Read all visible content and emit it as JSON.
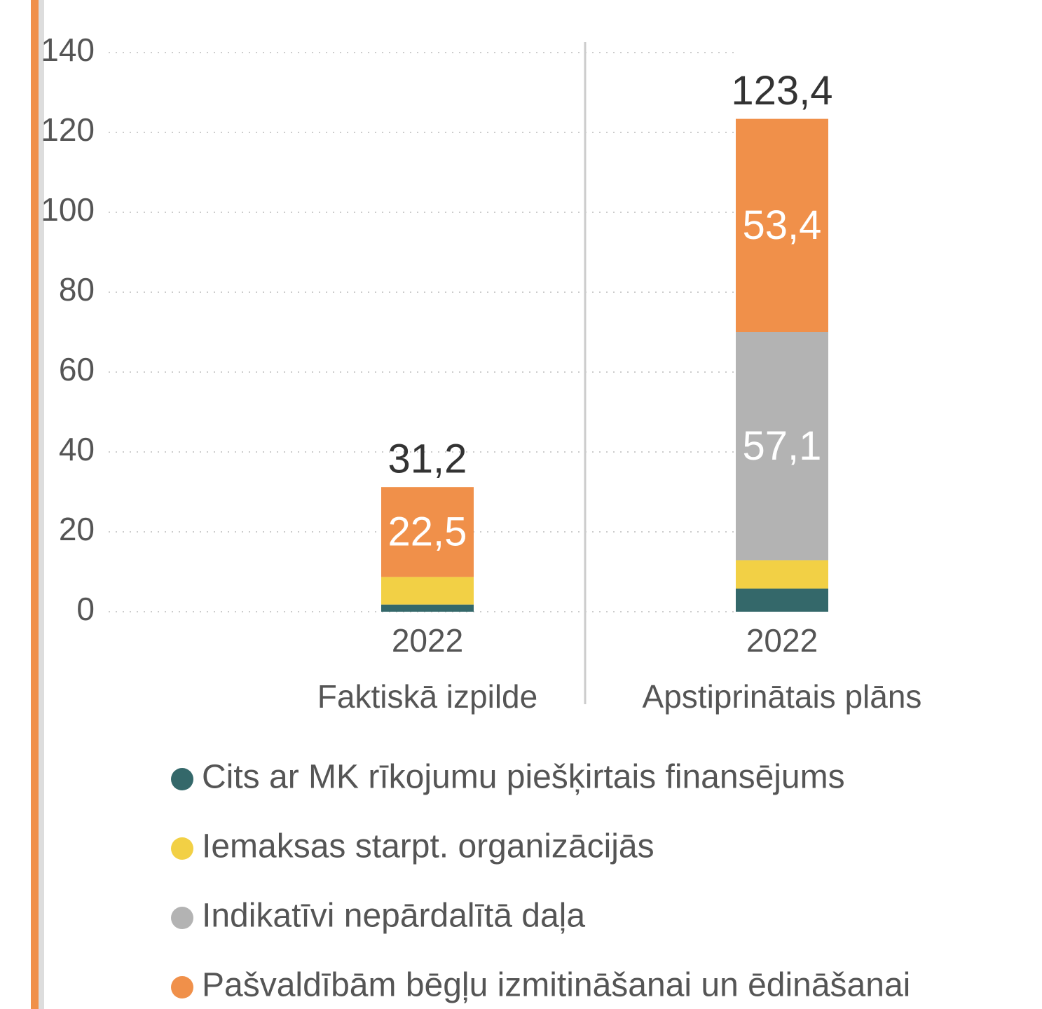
{
  "chart_data": {
    "type": "stacked_bar",
    "groups": [
      "Faktiskā izpilde",
      "Apstiprinātais plāns"
    ],
    "categories": [
      "2022",
      "2022"
    ],
    "series": [
      {
        "name": "Cits ar MK rīkojumu piešķirtais finansējums",
        "color": "#34686a",
        "values": [
          1.8,
          5.8
        ]
      },
      {
        "name": "Iemaksas starpt. organizācijās",
        "color": "#f2d045",
        "values": [
          6.9,
          7.1
        ]
      },
      {
        "name": "Indikatīvi nepārdalītā daļa",
        "color": "#b3b3b3",
        "values": [
          null,
          57.1
        ],
        "value_labels": [
          null,
          "57,1"
        ]
      },
      {
        "name": "Pašvaldībām bēgļu izmitināšanai un ēdināšanai",
        "color": "#f0904a",
        "values": [
          22.5,
          53.4
        ],
        "value_labels": [
          "22,5",
          "53,4"
        ]
      }
    ],
    "totals": [
      31.2,
      123.4
    ],
    "total_labels": [
      "31,2",
      "123,4"
    ],
    "ylim": [
      0,
      140
    ],
    "yticks": [
      0,
      20,
      40,
      60,
      80,
      100,
      120,
      140
    ],
    "grid": true
  }
}
